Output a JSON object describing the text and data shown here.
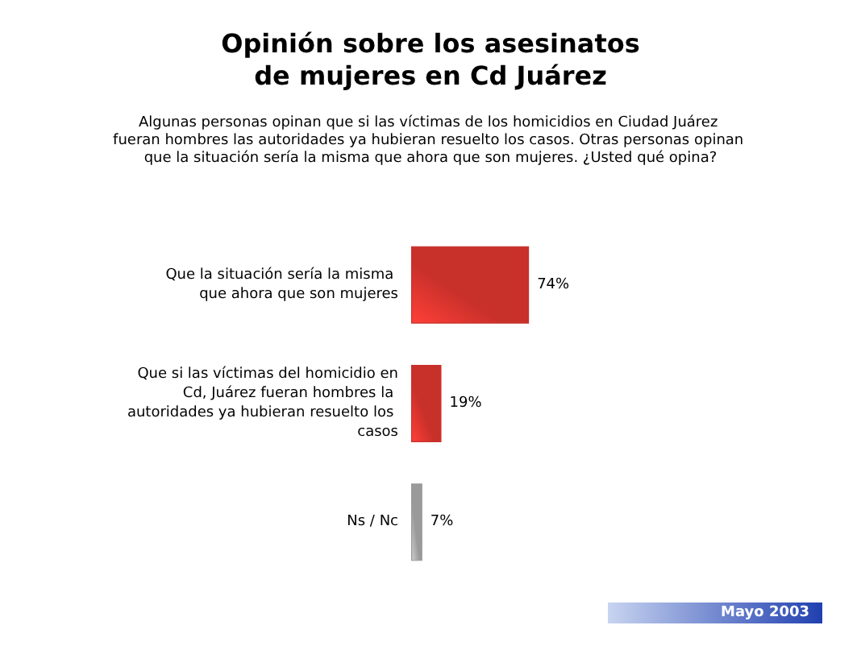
{
  "chart_data": {
    "type": "bar",
    "orientation": "horizontal",
    "title": "Opinión sobre los asesinatos\nde mujeres en Cd Juárez",
    "subtitle": "Algunas personas opinan que si las víctimas de los homicidios en Ciudad Juárez fueran hombres las autoridades ya hubieran resuelto los casos. Otras personas opinan que la situación sería la misma que ahora que son mujeres. ¿Usted qué opina?",
    "categories": [
      "Que la situación sería la misma que ahora que son mujeres",
      "Que si las víctimas del homicidio en Cd, Juárez fueran hombres la autoridades ya hubieran resuelto los casos",
      "Ns / Nc"
    ],
    "values": [
      74,
      19,
      7
    ],
    "colors": [
      "#c8302a",
      "#c8302a",
      "#9a9a9a"
    ],
    "value_labels": [
      "74%",
      "19%",
      "7%"
    ],
    "annotations": [
      "Mayo 2003"
    ]
  }
}
